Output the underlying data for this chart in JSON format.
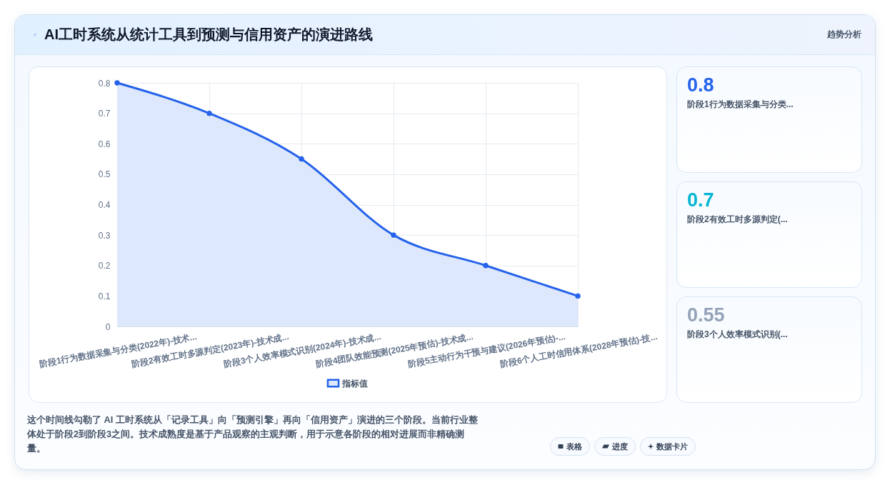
{
  "chart_data": [
    {
      "type": "area",
      "title": "AI工时系统从统计工具到预测与信用资产的演进路线",
      "categories": [
        "阶段1行为数据采集与分类(2022年)-技术...",
        "阶段2有效工时多源判定(2023年)-技术成...",
        "阶段3个人效率模式识别(2024年)-技术成...",
        "阶段4团队效能预测(2025年预估)-技术成...",
        "阶段5主动行为干预与建议(2026年预估)-...",
        "阶段6个人工时信用体系(2028年预估)-技..."
      ],
      "series": [
        {
          "name": "指标值",
          "color": "#2563eb",
          "values": [
            0.8,
            0.7,
            0.55,
            0.3,
            0.2,
            0.1
          ]
        }
      ],
      "ylim": [
        0,
        0.8
      ],
      "yticks": [
        0,
        0.1,
        0.2,
        0.3,
        0.4,
        0.5,
        0.6,
        0.7,
        0.8
      ],
      "grid": true,
      "legend": "bottom",
      "marker": "circle",
      "annotations": [
        "趋势分析",
        "这个时间线勾勒了 AI 工时系统从「记录工具」向「预测引擎」再向「信用资产」演进的三个阶段。当前行业整体处于阶段2到阶段3之间。技术成熟度是基于产品观察的主观判断，用于示意各阶段的相对进展而非精确测量。",
        "表格",
        "进度",
        "数据卡片"
      ]
    },
    {
      "type": "other",
      "annotations": [
        "0.8",
        "阶段1行为数据采集与分类...",
        "0.7",
        "阶段2有效工时多源判定(...",
        "0.55",
        "阶段3个人效率模式识别(..."
      ]
    }
  ]
}
